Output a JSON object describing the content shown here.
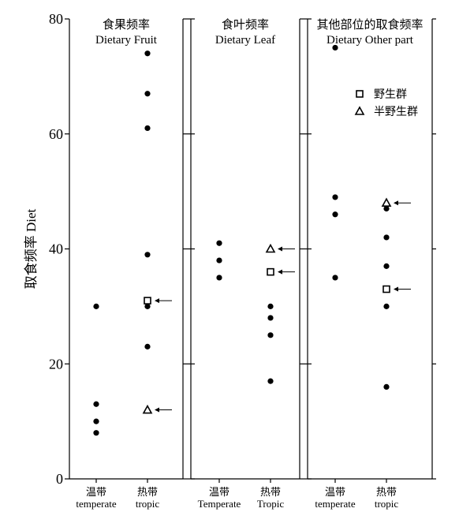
{
  "chart_data": {
    "type": "scatter",
    "ylabel": "取食频率 Diet",
    "ylim": [
      0,
      80
    ],
    "yticks": [
      "0",
      "20",
      "40",
      "60",
      "80"
    ],
    "legend": [
      {
        "name": "野生群",
        "marker": "square"
      },
      {
        "name": "半野生群",
        "marker": "triangle"
      }
    ],
    "panels": [
      {
        "title_cn": "食果频率",
        "title_en": "Dietary Fruit",
        "categories": [
          {
            "cn": "温带",
            "en": "temperate"
          },
          {
            "cn": "热带",
            "en": "tropic"
          }
        ],
        "points": [
          {
            "cat": 0,
            "y": 30,
            "marker": "dot"
          },
          {
            "cat": 0,
            "y": 13,
            "marker": "dot"
          },
          {
            "cat": 0,
            "y": 10,
            "marker": "dot"
          },
          {
            "cat": 0,
            "y": 8,
            "marker": "dot"
          },
          {
            "cat": 1,
            "y": 74,
            "marker": "dot"
          },
          {
            "cat": 1,
            "y": 67,
            "marker": "dot"
          },
          {
            "cat": 1,
            "y": 61,
            "marker": "dot"
          },
          {
            "cat": 1,
            "y": 39,
            "marker": "dot"
          },
          {
            "cat": 1,
            "y": 31,
            "marker": "square",
            "arrow": true
          },
          {
            "cat": 1,
            "y": 30,
            "marker": "dot"
          },
          {
            "cat": 1,
            "y": 23,
            "marker": "dot"
          },
          {
            "cat": 1,
            "y": 12,
            "marker": "triangle",
            "arrow": true
          }
        ]
      },
      {
        "title_cn": "食叶频率",
        "title_en": "Dietary Leaf",
        "categories": [
          {
            "cn": "温带",
            "en": "Temperate"
          },
          {
            "cn": "热带",
            "en": "Tropic"
          }
        ],
        "points": [
          {
            "cat": 0,
            "y": 41,
            "marker": "dot"
          },
          {
            "cat": 0,
            "y": 38,
            "marker": "dot"
          },
          {
            "cat": 0,
            "y": 35,
            "marker": "dot"
          },
          {
            "cat": 1,
            "y": 40,
            "marker": "triangle",
            "arrow": true
          },
          {
            "cat": 1,
            "y": 36,
            "marker": "square",
            "arrow": true
          },
          {
            "cat": 1,
            "y": 30,
            "marker": "dot"
          },
          {
            "cat": 1,
            "y": 28,
            "marker": "dot"
          },
          {
            "cat": 1,
            "y": 25,
            "marker": "dot"
          },
          {
            "cat": 1,
            "y": 17,
            "marker": "dot"
          }
        ]
      },
      {
        "title_cn": "其他部位的取食频率",
        "title_en": "Dietary Other part",
        "categories": [
          {
            "cn": "温带",
            "en": "temperate"
          },
          {
            "cn": "热带",
            "en": "tropic"
          }
        ],
        "points": [
          {
            "cat": 0,
            "y": 75,
            "marker": "dot"
          },
          {
            "cat": 0,
            "y": 49,
            "marker": "dot"
          },
          {
            "cat": 0,
            "y": 46,
            "marker": "dot"
          },
          {
            "cat": 0,
            "y": 35,
            "marker": "dot"
          },
          {
            "cat": 1,
            "y": 48,
            "marker": "triangle",
            "arrow": true
          },
          {
            "cat": 1,
            "y": 47,
            "marker": "dot"
          },
          {
            "cat": 1,
            "y": 42,
            "marker": "dot"
          },
          {
            "cat": 1,
            "y": 37,
            "marker": "dot"
          },
          {
            "cat": 1,
            "y": 33,
            "marker": "square",
            "arrow": true
          },
          {
            "cat": 1,
            "y": 30,
            "marker": "dot"
          },
          {
            "cat": 1,
            "y": 16,
            "marker": "dot"
          }
        ]
      }
    ]
  }
}
